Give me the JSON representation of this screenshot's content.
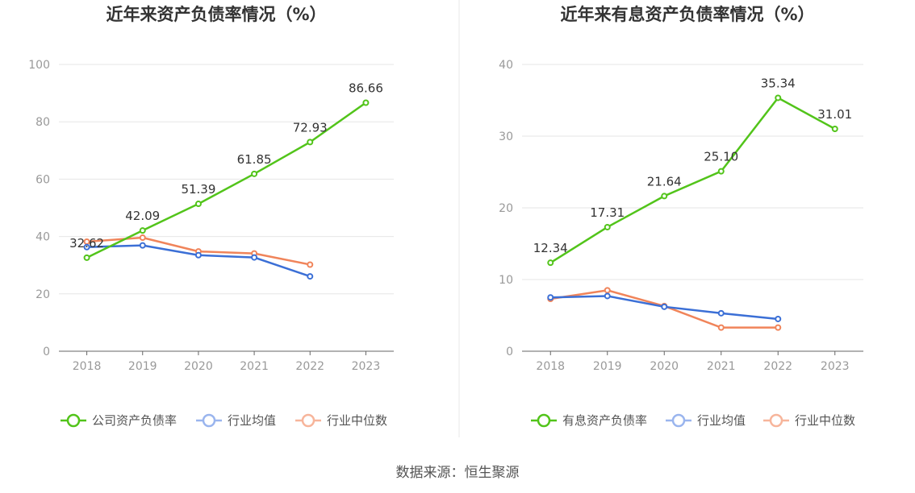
{
  "charts": [
    {
      "type": "line",
      "title": "近年来资产负债率情况（%）",
      "categories": [
        "2018",
        "2019",
        "2020",
        "2021",
        "2022",
        "2023"
      ],
      "ylim": [
        0,
        100
      ],
      "yticks": [
        "0",
        "20",
        "40",
        "60",
        "80",
        "100"
      ],
      "series": [
        {
          "name": "公司资产负债率",
          "color": "#52c41a",
          "values": [
            32.62,
            42.09,
            51.39,
            61.85,
            72.93,
            86.66
          ],
          "labels": [
            "32.62",
            "42.09",
            "51.39",
            "61.85",
            "72.93",
            "86.66"
          ]
        },
        {
          "name": "行业均值",
          "color": "#3b6fd6",
          "values": [
            36.3,
            36.9,
            33.5,
            32.7,
            26.1,
            null
          ]
        },
        {
          "name": "行业中位数",
          "color": "#f0845a",
          "values": [
            38.2,
            39.6,
            34.8,
            34.1,
            30.2,
            null
          ]
        }
      ]
    },
    {
      "type": "line",
      "title": "近年来有息资产负债率情况（%）",
      "categories": [
        "2018",
        "2019",
        "2020",
        "2021",
        "2022",
        "2023"
      ],
      "ylim": [
        0,
        40
      ],
      "yticks": [
        "0",
        "10",
        "20",
        "30",
        "40"
      ],
      "series": [
        {
          "name": "有息资产负债率",
          "color": "#52c41a",
          "values": [
            12.34,
            17.31,
            21.64,
            25.1,
            35.34,
            31.01
          ],
          "labels": [
            "12.34",
            "17.31",
            "21.64",
            "25.10",
            "35.34",
            "31.01"
          ]
        },
        {
          "name": "行业均值",
          "color": "#3b6fd6",
          "values": [
            7.5,
            7.7,
            6.2,
            5.3,
            4.5,
            null
          ]
        },
        {
          "name": "行业中位数",
          "color": "#f0845a",
          "values": [
            7.3,
            8.5,
            6.3,
            3.3,
            3.3,
            null
          ]
        }
      ]
    }
  ],
  "legend_position": "bottom",
  "grid": true,
  "source": "数据来源：恒生聚源"
}
